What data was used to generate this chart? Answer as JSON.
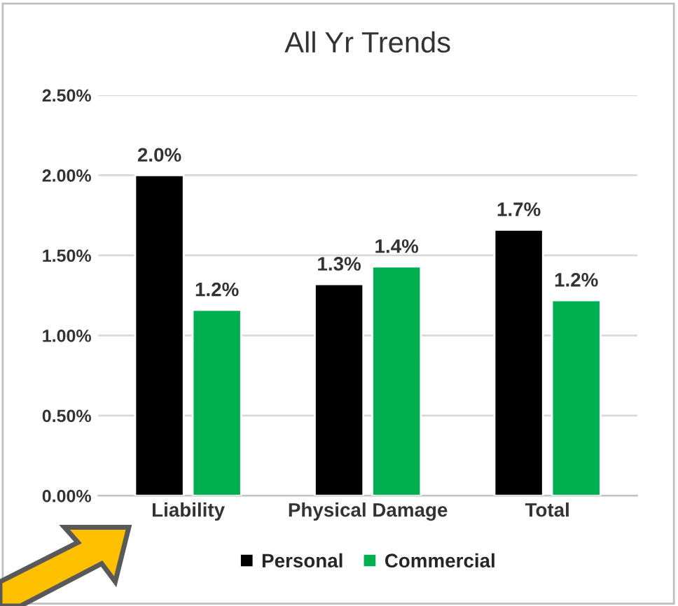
{
  "chart_data": {
    "type": "bar",
    "title": "All Yr Trends",
    "categories": [
      "Liability",
      "Physical Damage",
      "Total"
    ],
    "series": [
      {
        "name": "Personal",
        "color": "#000000",
        "values": [
          2.0,
          1.32,
          1.66
        ],
        "value_labels": [
          "2.0%",
          "1.3%",
          "1.7%"
        ]
      },
      {
        "name": "Commercial",
        "color": "#00b050",
        "values": [
          1.16,
          1.43,
          1.22
        ],
        "value_labels": [
          "1.2%",
          "1.4%",
          "1.2%"
        ]
      }
    ],
    "ylim": [
      0,
      2.5
    ],
    "yticks": [
      {
        "value": 0,
        "label": "0.00%"
      },
      {
        "value": 0.5,
        "label": "0.50%"
      },
      {
        "value": 1.0,
        "label": "1.00%"
      },
      {
        "value": 1.5,
        "label": "1.50%"
      },
      {
        "value": 2.0,
        "label": "2.00%"
      },
      {
        "value": 2.5,
        "label": "2.50%"
      }
    ],
    "grid": "y",
    "legend": "bottom"
  }
}
